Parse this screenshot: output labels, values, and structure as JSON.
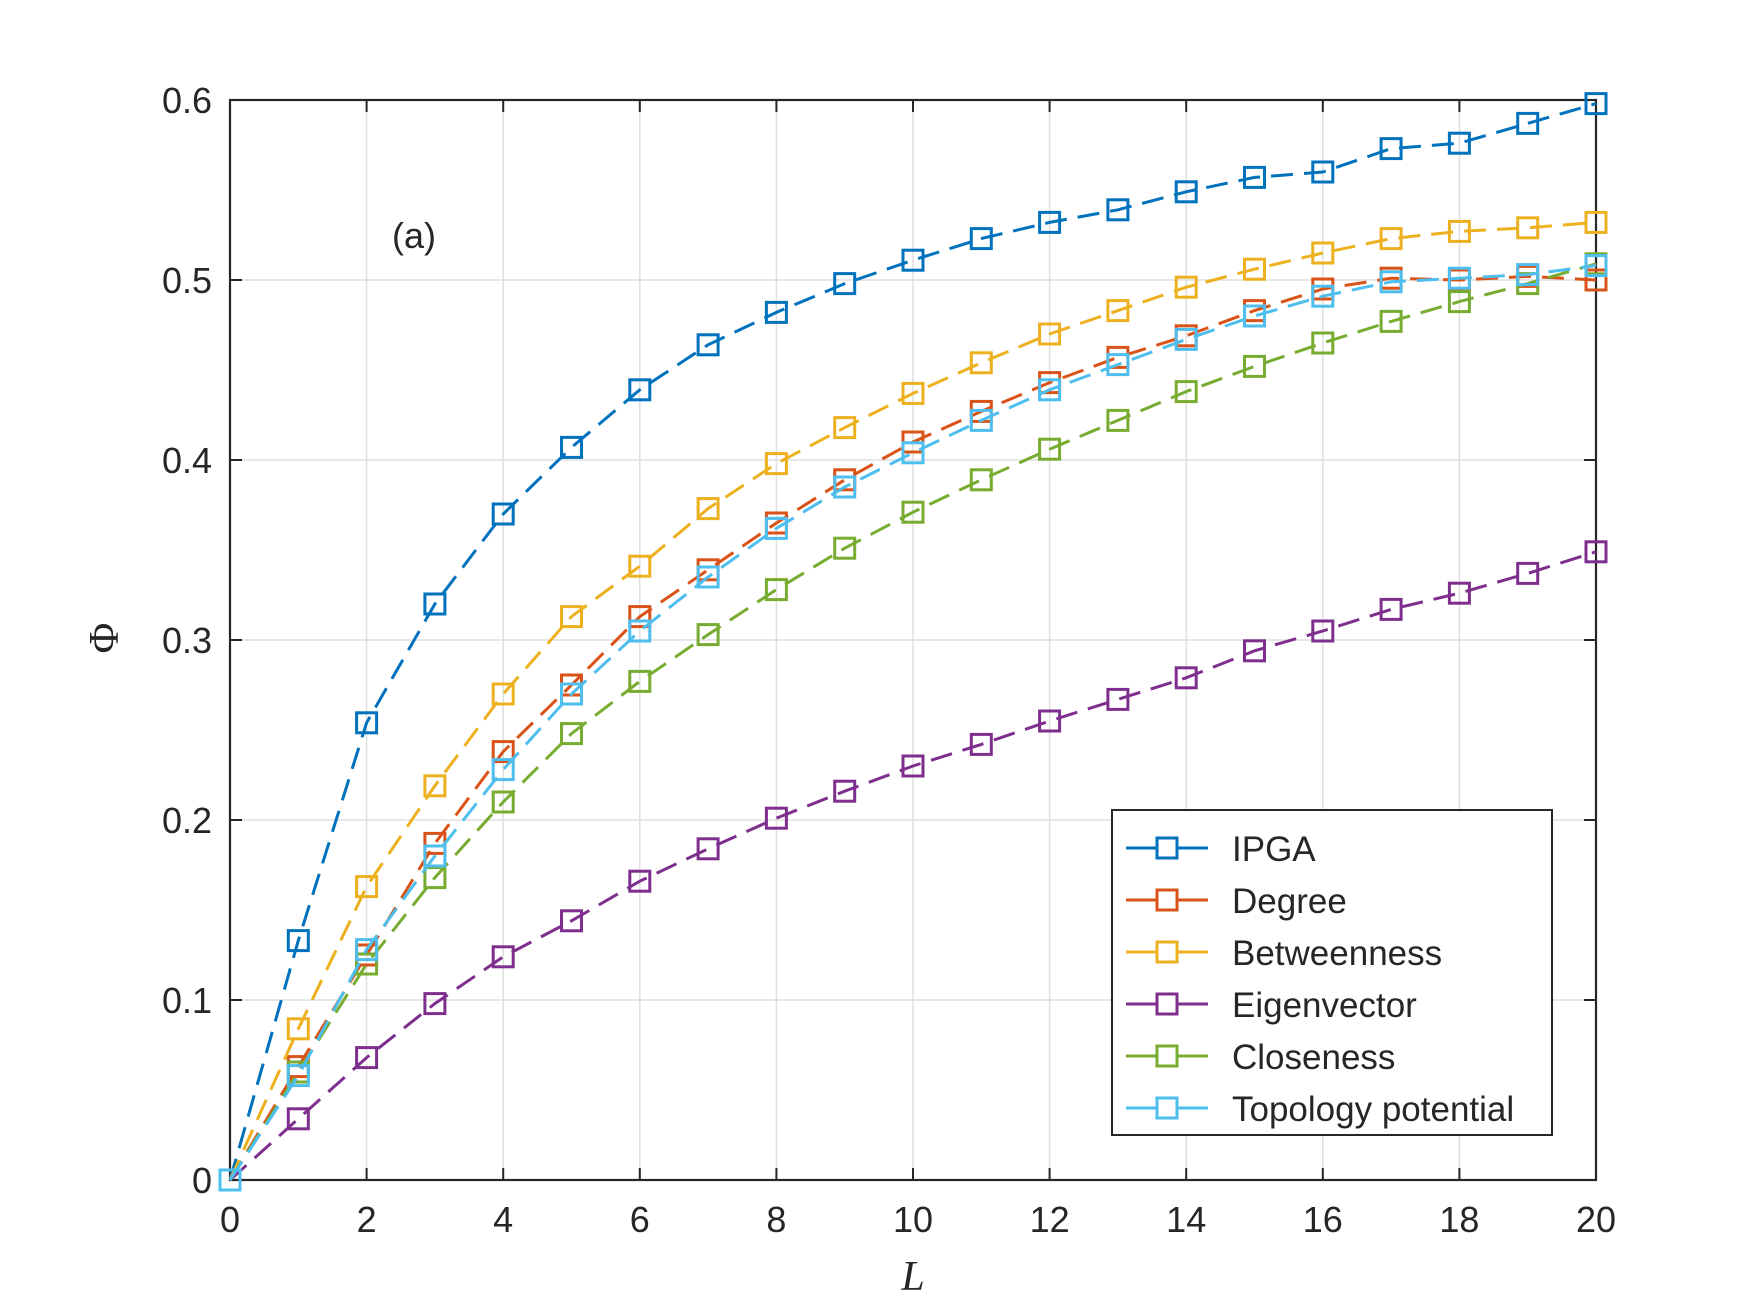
{
  "chart_data": {
    "type": "line",
    "title": "",
    "xlabel": "L",
    "ylabel": "Φ",
    "xlim": [
      0,
      20
    ],
    "ylim": [
      0,
      0.6
    ],
    "xticks": [
      0,
      2,
      4,
      6,
      8,
      10,
      12,
      14,
      16,
      18,
      20
    ],
    "xtick_labels": [
      "0",
      "2",
      "4",
      "6",
      "8",
      "10",
      "12",
      "14",
      "16",
      "18",
      "20"
    ],
    "yticks": [
      0,
      0.1,
      0.2,
      0.3,
      0.4,
      0.5,
      0.6
    ],
    "ytick_labels": [
      "0",
      "0.1",
      "0.2",
      "0.3",
      "0.4",
      "0.5",
      "0.6"
    ],
    "grid": true,
    "legend_position": "bottom-right",
    "annotation": "(a)",
    "marker": "square",
    "line_style": "dashed",
    "x": [
      0,
      1,
      2,
      3,
      4,
      5,
      6,
      7,
      8,
      9,
      10,
      11,
      12,
      13,
      14,
      15,
      16,
      17,
      18,
      19,
      20
    ],
    "series": [
      {
        "name": "IPGA",
        "color": "#0072BD",
        "values": [
          0,
          0.133,
          0.254,
          0.32,
          0.37,
          0.407,
          0.439,
          0.464,
          0.482,
          0.498,
          0.511,
          0.523,
          0.532,
          0.539,
          0.549,
          0.557,
          0.56,
          0.573,
          0.576,
          0.587,
          0.598
        ]
      },
      {
        "name": "Degree",
        "color": "#D95319",
        "values": [
          0,
          0.063,
          0.125,
          0.187,
          0.238,
          0.275,
          0.313,
          0.339,
          0.365,
          0.389,
          0.41,
          0.427,
          0.443,
          0.457,
          0.469,
          0.483,
          0.495,
          0.501,
          0.5,
          0.502,
          0.5
        ]
      },
      {
        "name": "Betweenness",
        "color": "#EDB120",
        "values": [
          0,
          0.084,
          0.163,
          0.219,
          0.27,
          0.313,
          0.341,
          0.373,
          0.398,
          0.418,
          0.437,
          0.454,
          0.47,
          0.483,
          0.496,
          0.506,
          0.515,
          0.523,
          0.527,
          0.529,
          0.532
        ]
      },
      {
        "name": "Eigenvector",
        "color": "#7E2F8E",
        "values": [
          0,
          0.034,
          0.068,
          0.098,
          0.124,
          0.144,
          0.166,
          0.184,
          0.201,
          0.216,
          0.23,
          0.242,
          0.255,
          0.267,
          0.279,
          0.294,
          0.305,
          0.317,
          0.326,
          0.337,
          0.349
        ]
      },
      {
        "name": "Closeness",
        "color": "#77AC30",
        "values": [
          0,
          0.06,
          0.12,
          0.168,
          0.21,
          0.248,
          0.277,
          0.303,
          0.328,
          0.351,
          0.371,
          0.389,
          0.406,
          0.422,
          0.438,
          0.452,
          0.465,
          0.477,
          0.488,
          0.498,
          0.509
        ]
      },
      {
        "name": "Topology potential",
        "color": "#4DBEEE",
        "values": [
          0,
          0.058,
          0.128,
          0.18,
          0.228,
          0.27,
          0.305,
          0.335,
          0.362,
          0.385,
          0.404,
          0.422,
          0.439,
          0.453,
          0.467,
          0.48,
          0.491,
          0.499,
          0.501,
          0.503,
          0.508
        ]
      }
    ]
  }
}
